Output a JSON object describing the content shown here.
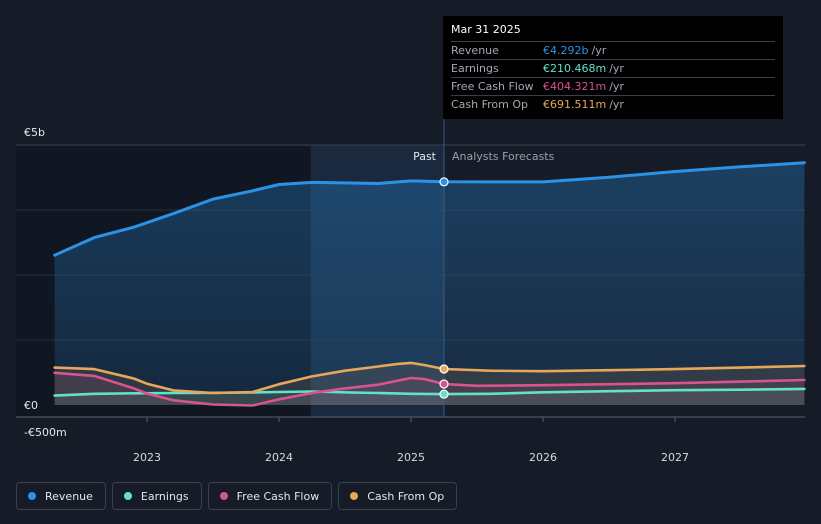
{
  "chart_data": {
    "type": "line",
    "x_ticks": [
      "2023",
      "2024",
      "2025",
      "2026",
      "2027"
    ],
    "y_labels": [
      "€5b",
      "€0",
      "-€500m"
    ],
    "ylim": [
      -500,
      5000
    ],
    "past_label": "Past",
    "forecast_label": "Analysts Forecasts",
    "series": [
      {
        "name": "Revenue",
        "color": "#2b93e6",
        "points": [
          [
            2022.3,
            2880
          ],
          [
            2022.6,
            3220
          ],
          [
            2022.9,
            3420
          ],
          [
            2023.2,
            3680
          ],
          [
            2023.5,
            3960
          ],
          [
            2023.8,
            4120
          ],
          [
            2024.0,
            4240
          ],
          [
            2024.25,
            4280
          ],
          [
            2024.55,
            4270
          ],
          [
            2024.75,
            4260
          ],
          [
            2025.0,
            4310
          ],
          [
            2025.25,
            4292
          ],
          [
            2025.6,
            4290
          ],
          [
            2026.0,
            4290
          ],
          [
            2026.5,
            4380
          ],
          [
            2027.0,
            4490
          ],
          [
            2027.5,
            4580
          ],
          [
            2027.98,
            4660
          ]
        ]
      },
      {
        "name": "Earnings",
        "color": "#5fe3cc",
        "points": [
          [
            2022.3,
            180
          ],
          [
            2022.6,
            215
          ],
          [
            2022.9,
            225
          ],
          [
            2023.2,
            230
          ],
          [
            2023.5,
            235
          ],
          [
            2023.8,
            240
          ],
          [
            2024.0,
            250
          ],
          [
            2024.25,
            260
          ],
          [
            2024.55,
            240
          ],
          [
            2024.75,
            230
          ],
          [
            2025.0,
            215
          ],
          [
            2025.25,
            210
          ],
          [
            2025.6,
            215
          ],
          [
            2026.0,
            245
          ],
          [
            2026.5,
            265
          ],
          [
            2027.0,
            285
          ],
          [
            2027.5,
            295
          ],
          [
            2027.98,
            310
          ]
        ]
      },
      {
        "name": "Free Cash Flow",
        "color": "#d8548f",
        "points": [
          [
            2022.3,
            620
          ],
          [
            2022.6,
            560
          ],
          [
            2022.75,
            440
          ],
          [
            2022.9,
            320
          ],
          [
            2023.0,
            220
          ],
          [
            2023.2,
            90
          ],
          [
            2023.5,
            10
          ],
          [
            2023.8,
            -10
          ],
          [
            2024.0,
            110
          ],
          [
            2024.25,
            230
          ],
          [
            2024.5,
            320
          ],
          [
            2024.75,
            390
          ],
          [
            2025.0,
            520
          ],
          [
            2025.1,
            500
          ],
          [
            2025.25,
            404
          ],
          [
            2025.5,
            370
          ],
          [
            2026.0,
            380
          ],
          [
            2026.5,
            400
          ],
          [
            2027.0,
            420
          ],
          [
            2027.5,
            450
          ],
          [
            2027.98,
            480
          ]
        ]
      },
      {
        "name": "Cash From Op",
        "color": "#e6a75a",
        "points": [
          [
            2022.3,
            720
          ],
          [
            2022.6,
            690
          ],
          [
            2022.9,
            510
          ],
          [
            2023.0,
            410
          ],
          [
            2023.2,
            280
          ],
          [
            2023.5,
            230
          ],
          [
            2023.8,
            250
          ],
          [
            2024.0,
            400
          ],
          [
            2024.25,
            550
          ],
          [
            2024.5,
            660
          ],
          [
            2024.75,
            740
          ],
          [
            2024.9,
            790
          ],
          [
            2025.0,
            810
          ],
          [
            2025.1,
            770
          ],
          [
            2025.25,
            692
          ],
          [
            2025.6,
            660
          ],
          [
            2026.0,
            650
          ],
          [
            2026.5,
            670
          ],
          [
            2027.0,
            690
          ],
          [
            2027.5,
            720
          ],
          [
            2027.98,
            750
          ]
        ]
      }
    ],
    "highlight": {
      "date": "Mar 31 2025",
      "x": 2025.25,
      "rows": [
        {
          "name": "Revenue",
          "value": "€4.292b",
          "unit": "/yr",
          "color": "#2b93e6",
          "y": 4292
        },
        {
          "name": "Earnings",
          "value": "€210.468m",
          "unit": "/yr",
          "color": "#5fe3cc",
          "y": 210
        },
        {
          "name": "Free Cash Flow",
          "value": "€404.321m",
          "unit": "/yr",
          "color": "#d8548f",
          "y": 404
        },
        {
          "name": "Cash From Op",
          "value": "€691.511m",
          "unit": "/yr",
          "color": "#e6a75a",
          "y": 692
        }
      ]
    },
    "past_band": [
      2024.24,
      2025.25
    ]
  },
  "legend": [
    {
      "label": "Revenue",
      "color": "#2b93e6"
    },
    {
      "label": "Earnings",
      "color": "#5fe3cc"
    },
    {
      "label": "Free Cash Flow",
      "color": "#d8548f"
    },
    {
      "label": "Cash From Op",
      "color": "#e6a75a"
    }
  ]
}
